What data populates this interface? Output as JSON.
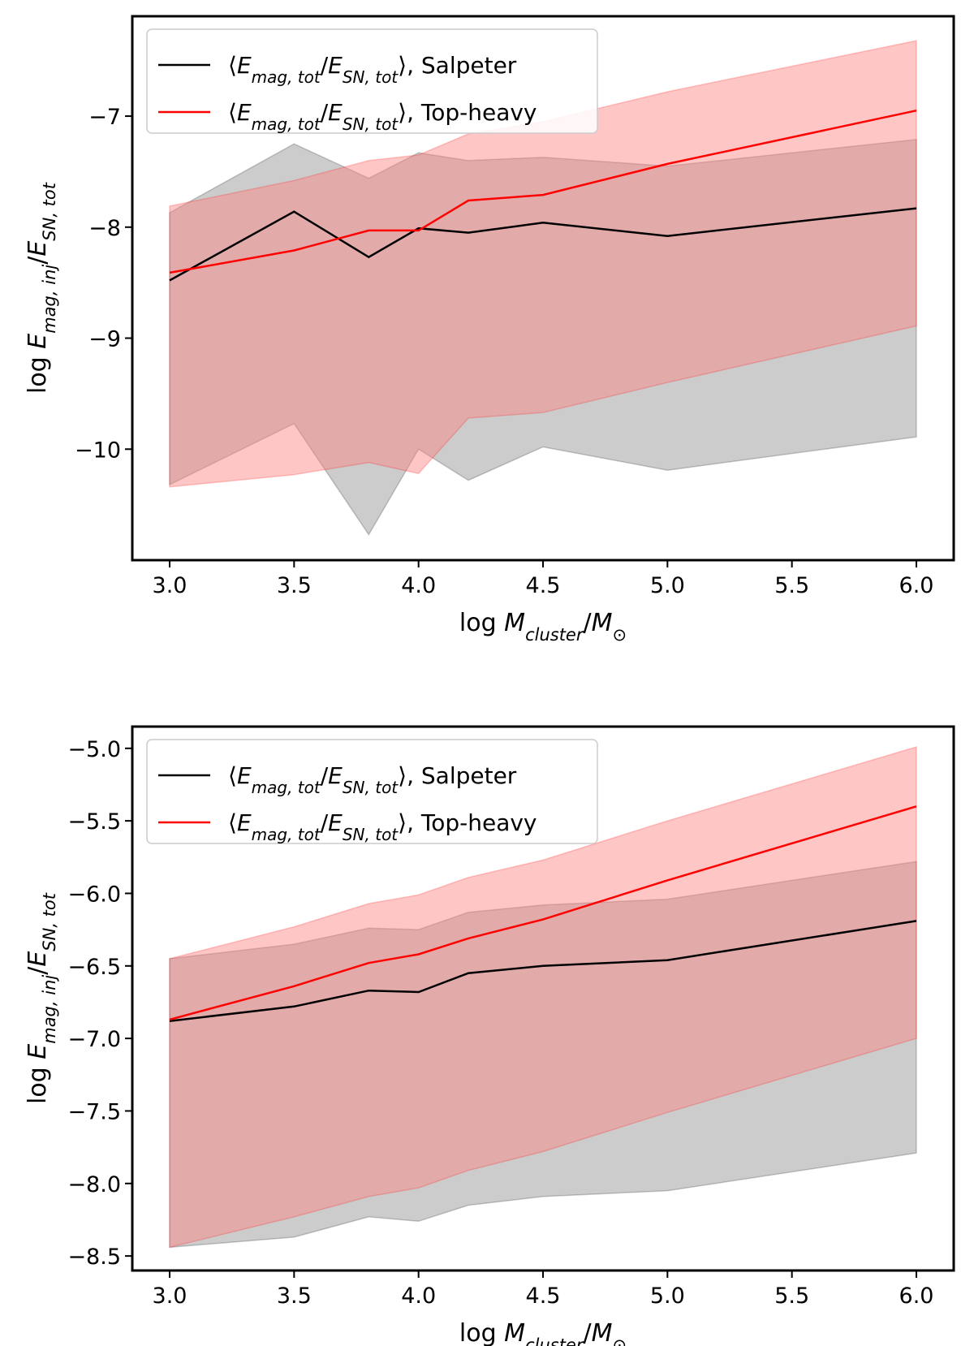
{
  "chart_data": [
    {
      "type": "line",
      "title": "",
      "xlabel": "log M_cluster/M_⊙",
      "ylabel": "log E_mag,inj/E_SN,tot",
      "xlim": [
        2.85,
        6.15
      ],
      "ylim": [
        -11.0,
        -6.1
      ],
      "xticks": [
        3.0,
        3.5,
        4.0,
        4.5,
        5.0,
        5.5,
        6.0
      ],
      "xtick_labels": [
        "3.0",
        "3.5",
        "4.0",
        "4.5",
        "5.0",
        "5.5",
        "6.0"
      ],
      "yticks": [
        -10,
        -9,
        -8,
        -7
      ],
      "ytick_labels": [
        "−10",
        "−9",
        "−8",
        "−7"
      ],
      "legend_position": "top-left",
      "x": [
        3.0,
        3.5,
        3.8,
        4.0,
        4.2,
        4.5,
        5.0,
        6.0
      ],
      "series": [
        {
          "name": "⟨E_mag,tot/E_SN,tot⟩, Salpeter",
          "color": "#000000",
          "values": [
            -8.48,
            -7.86,
            -8.27,
            -8.01,
            -8.05,
            -7.96,
            -8.08,
            -7.83
          ],
          "upper": [
            -7.87,
            -7.25,
            -7.56,
            -7.33,
            -7.4,
            -7.37,
            -7.45,
            -7.21
          ],
          "lower": [
            -10.32,
            -9.77,
            -10.77,
            -10.0,
            -10.28,
            -9.98,
            -10.19,
            -9.89
          ]
        },
        {
          "name": "⟨E_mag,tot/E_SN,tot⟩, Top-heavy",
          "color": "#ff0000",
          "values": [
            -8.41,
            -8.21,
            -8.03,
            -8.03,
            -7.76,
            -7.71,
            -7.43,
            -6.95
          ],
          "upper": [
            -7.81,
            -7.58,
            -7.4,
            -7.35,
            -7.16,
            -7.05,
            -6.78,
            -6.32
          ],
          "lower": [
            -10.34,
            -10.23,
            -10.12,
            -10.22,
            -9.72,
            -9.67,
            -9.4,
            -8.89
          ]
        }
      ]
    },
    {
      "type": "line",
      "title": "",
      "xlabel": "log M_cluster/M_⊙",
      "ylabel": "log E_mag,inj/E_SN,tot",
      "xlim": [
        2.85,
        6.15
      ],
      "ylim": [
        -8.6,
        -4.85
      ],
      "xticks": [
        3.0,
        3.5,
        4.0,
        4.5,
        5.0,
        5.5,
        6.0
      ],
      "xtick_labels": [
        "3.0",
        "3.5",
        "4.0",
        "4.5",
        "5.0",
        "5.5",
        "6.0"
      ],
      "yticks": [
        -8.5,
        -8.0,
        -7.5,
        -7.0,
        -6.5,
        -6.0,
        -5.5,
        -5.0
      ],
      "ytick_labels": [
        "−8.5",
        "−8.0",
        "−7.5",
        "−7.0",
        "−6.5",
        "−6.0",
        "−5.5",
        "−5.0"
      ],
      "legend_position": "top-left",
      "x": [
        3.0,
        3.5,
        3.8,
        4.0,
        4.2,
        4.5,
        5.0,
        6.0
      ],
      "series": [
        {
          "name": "⟨E_mag,tot/E_SN,tot⟩, Salpeter",
          "color": "#000000",
          "values": [
            -6.88,
            -6.78,
            -6.67,
            -6.68,
            -6.55,
            -6.5,
            -6.46,
            -6.19
          ],
          "upper": [
            -6.45,
            -6.35,
            -6.24,
            -6.25,
            -6.13,
            -6.08,
            -6.04,
            -5.78
          ],
          "lower": [
            -8.44,
            -8.37,
            -8.23,
            -8.26,
            -8.15,
            -8.09,
            -8.05,
            -7.79
          ]
        },
        {
          "name": "⟨E_mag,tot/E_SN,tot⟩, Top-heavy",
          "color": "#ff0000",
          "values": [
            -6.87,
            -6.64,
            -6.48,
            -6.42,
            -6.31,
            -6.18,
            -5.91,
            -5.4
          ],
          "upper": [
            -6.45,
            -6.23,
            -6.07,
            -6.01,
            -5.89,
            -5.77,
            -5.5,
            -4.99
          ],
          "lower": [
            -8.44,
            -8.23,
            -8.09,
            -8.03,
            -7.91,
            -7.78,
            -7.51,
            -7.0
          ]
        }
      ]
    }
  ]
}
